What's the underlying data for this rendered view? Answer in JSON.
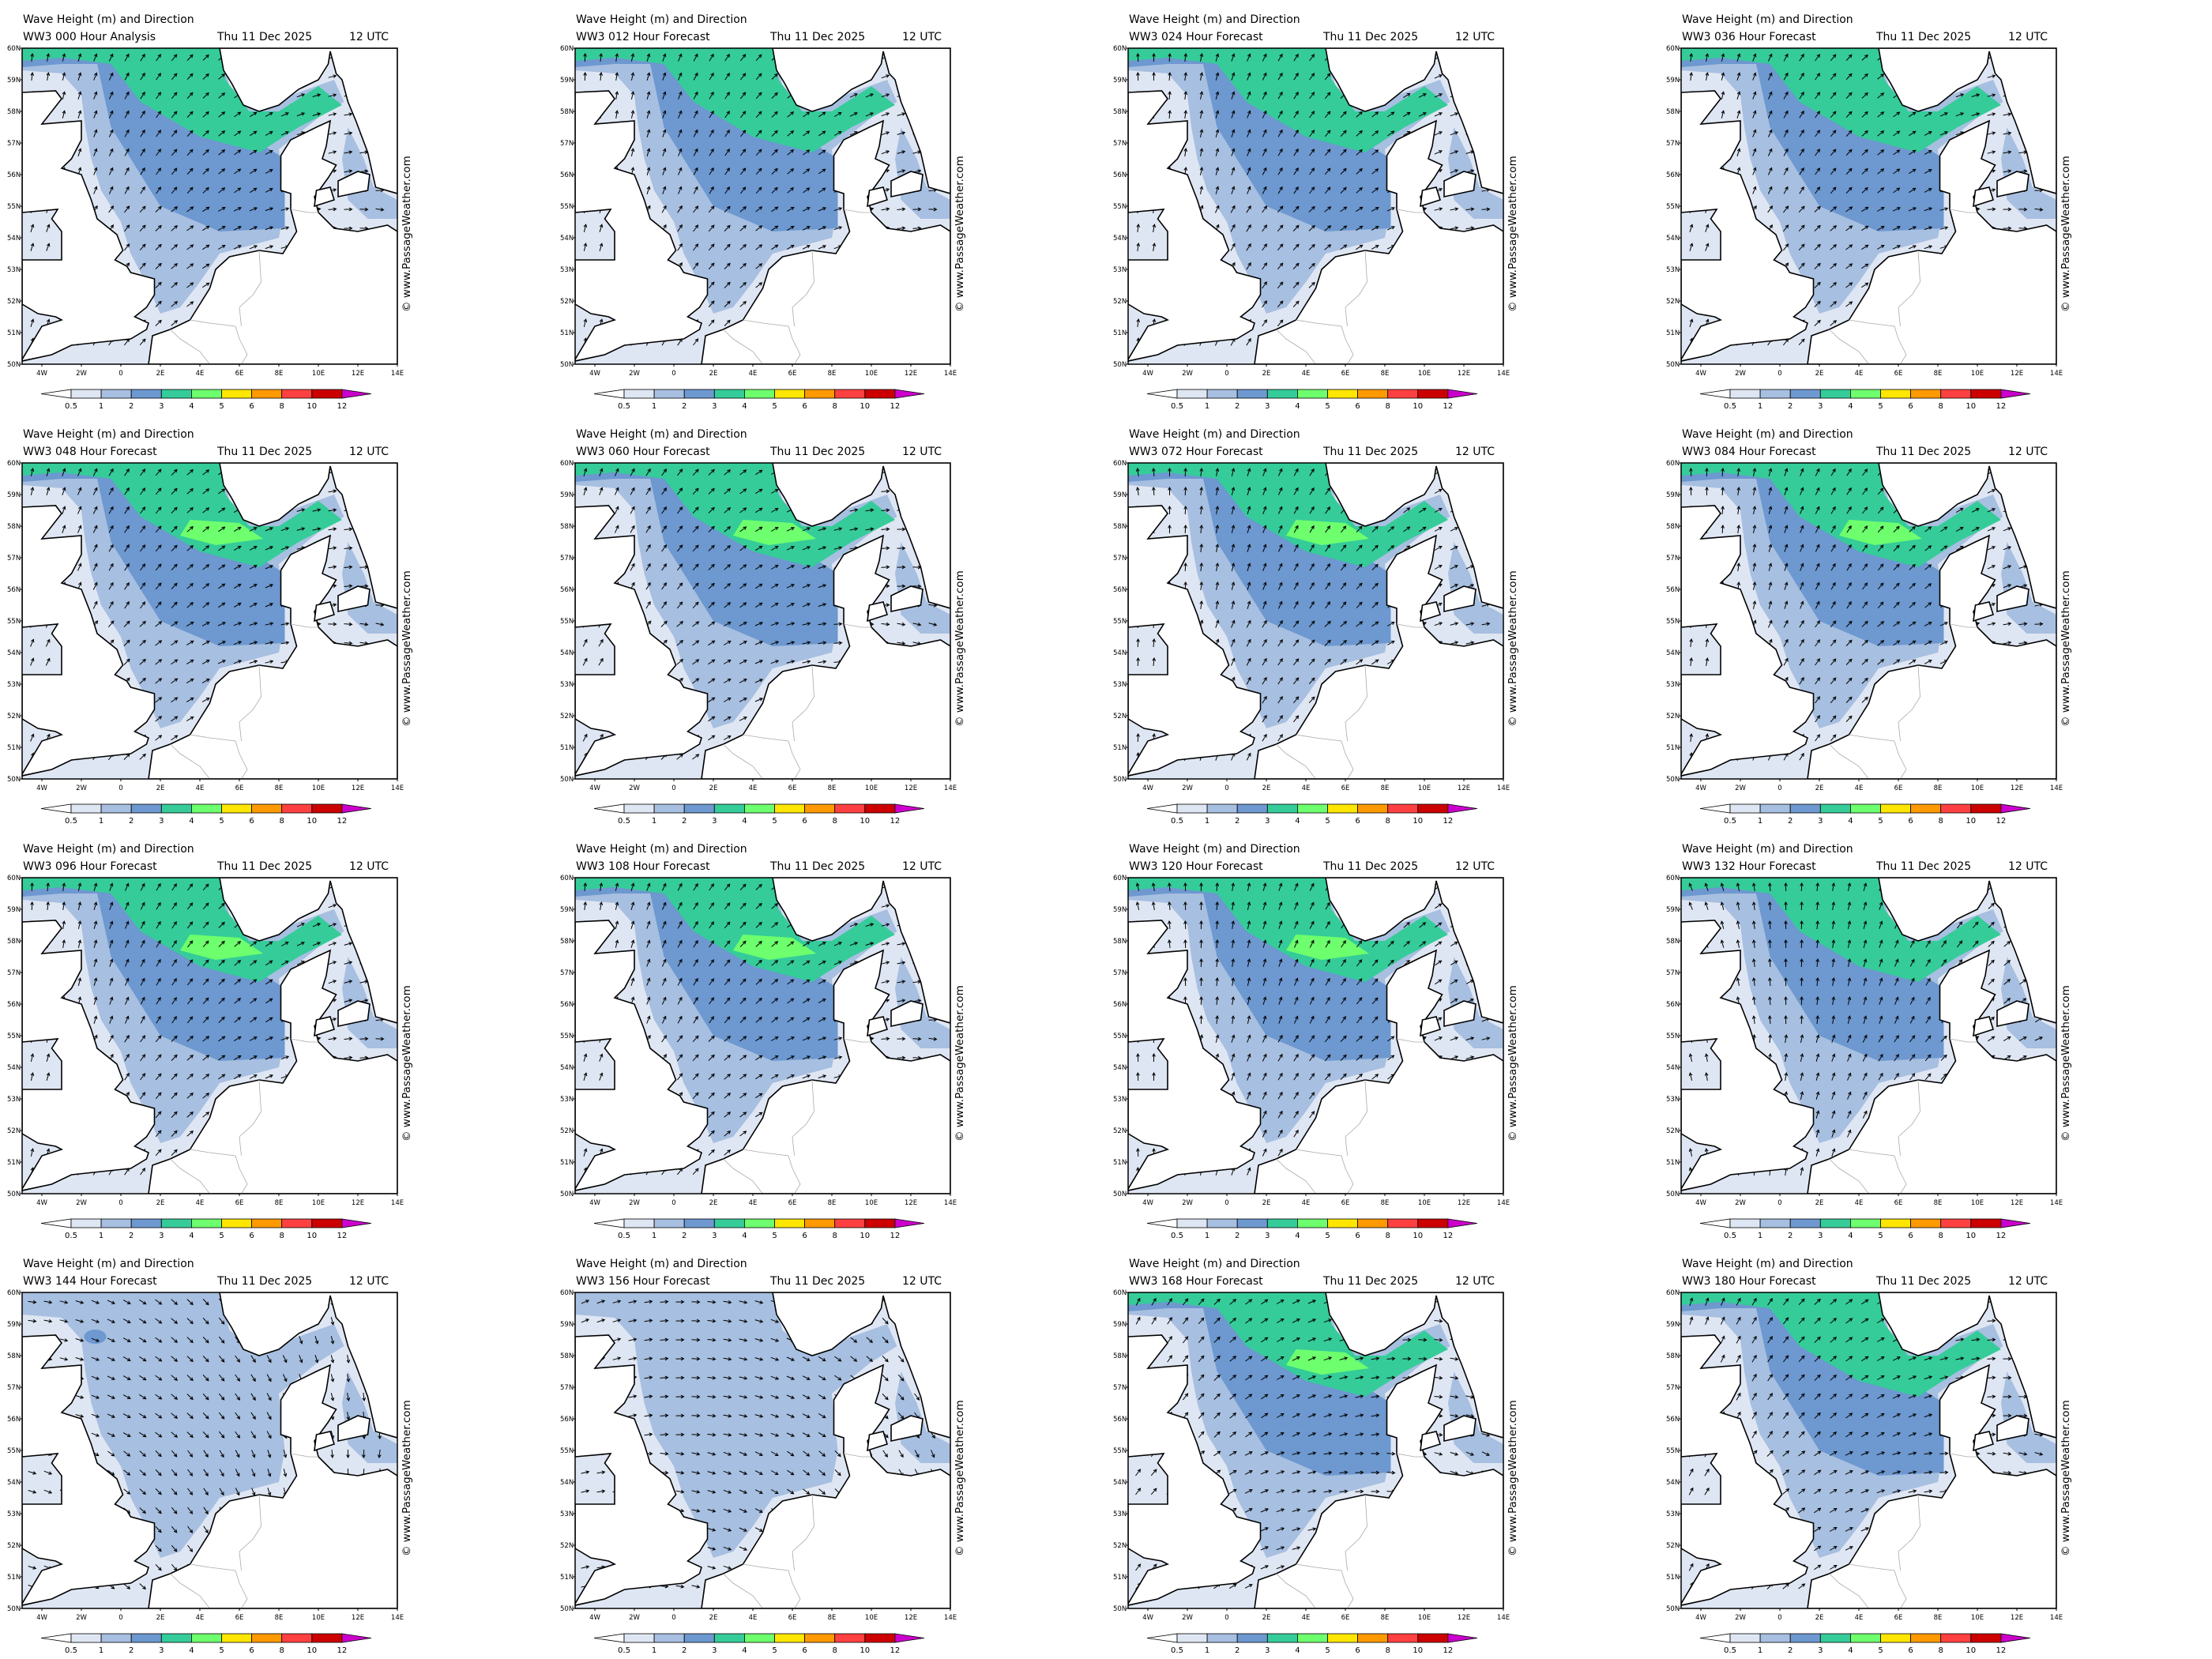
{
  "shared": {
    "title": "Wave Height (m) and Direction",
    "date": "Thu 11 Dec 2025",
    "time": "12 UTC",
    "watermark": "© www.PassageWeather.com",
    "lat_labels": [
      "60N",
      "59N",
      "58N",
      "57N",
      "56N",
      "55N",
      "54N",
      "53N",
      "52N",
      "51N",
      "50N"
    ],
    "lon_labels": [
      "4W",
      "2W",
      "0",
      "2E",
      "4E",
      "6E",
      "8E",
      "10E",
      "12E",
      "14E"
    ],
    "colorbar_labels": [
      "0.5",
      "1",
      "2",
      "3",
      "4",
      "5",
      "6",
      "8",
      "10",
      "12"
    ],
    "colorbar_colors": [
      "#ffffff",
      "#dfe6f3",
      "#a7bfe0",
      "#6d98d0",
      "#35cc99",
      "#6dff6d",
      "#ffe600",
      "#ff9900",
      "#ff4040",
      "#cc0000",
      "#cc00cc"
    ],
    "land_color": "#ffffff",
    "coast_color": "#000000"
  },
  "panels": [
    {
      "run": "WW3 000 Hour Analysis"
    },
    {
      "run": "WW3 012 Hour Forecast"
    },
    {
      "run": "WW3 024 Hour Forecast"
    },
    {
      "run": "WW3 036 Hour Forecast"
    },
    {
      "run": "WW3 048 Hour Forecast"
    },
    {
      "run": "WW3 060 Hour Forecast"
    },
    {
      "run": "WW3 072 Hour Forecast"
    },
    {
      "run": "WW3 084 Hour Forecast"
    },
    {
      "run": "WW3 096 Hour Forecast"
    },
    {
      "run": "WW3 108 Hour Forecast"
    },
    {
      "run": "WW3 120 Hour Forecast"
    },
    {
      "run": "WW3 132 Hour Forecast"
    },
    {
      "run": "WW3 144 Hour Forecast"
    },
    {
      "run": "WW3 156 Hour Forecast"
    },
    {
      "run": "WW3 168 Hour Forecast"
    },
    {
      "run": "WW3 180 Hour Forecast"
    }
  ],
  "chart_data": {
    "type": "heatmap",
    "title": "Wave Height (m) and Direction",
    "colorbar_levels_m": [
      0.5,
      1,
      2,
      3,
      4,
      5,
      6,
      8,
      10,
      12
    ],
    "lon_range": [
      -5,
      14
    ],
    "lat_range": [
      50,
      60
    ],
    "forecast_hours": [
      0,
      12,
      24,
      36,
      48,
      60,
      72,
      84,
      96,
      108,
      120,
      132,
      144,
      156,
      168,
      180
    ]
  }
}
